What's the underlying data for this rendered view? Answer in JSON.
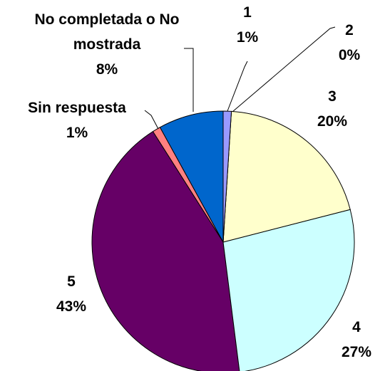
{
  "chart_data": {
    "type": "pie",
    "categories": [
      "1",
      "2",
      "3",
      "4",
      "5",
      "Sin respuesta",
      "No completada o No mostrada"
    ],
    "values": [
      1,
      0,
      20,
      27,
      43,
      1,
      8
    ],
    "value_labels": [
      "1%",
      "0%",
      "20%",
      "27%",
      "43%",
      "1%",
      "8%"
    ],
    "colors": [
      "#9999ff",
      "#993366",
      "#ffffcc",
      "#ccffff",
      "#660066",
      "#ff8080",
      "#0066cc"
    ]
  }
}
